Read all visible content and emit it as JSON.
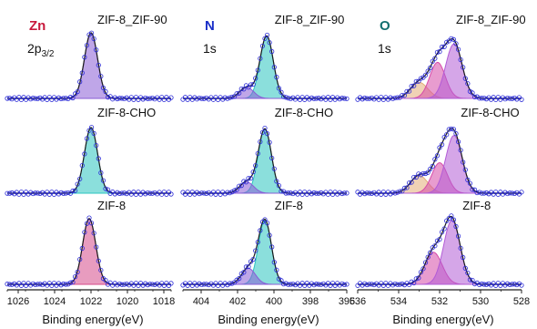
{
  "figure": {
    "colors": {
      "fit_line": "#1a1a1a",
      "data_marker": "#2b2bd6",
      "baseline": "#4a4af0"
    }
  },
  "chart_data": [
    {
      "type": "area",
      "element": "Zn",
      "element_color": "#c8193c",
      "orbital": "2p",
      "orbital_sub": "3/2",
      "xlabel": "Binding energy(eV)",
      "xlim": [
        1026.6,
        1017.6
      ],
      "x_ticks": [
        "1026",
        "1024",
        "1022",
        "1020",
        "1018"
      ],
      "x_tick_values": [
        1026,
        1024,
        1022,
        1020,
        1018
      ],
      "stacks": [
        {
          "label": "ZIF-8_ZIF-90",
          "peaks": [
            {
              "center": 1022.0,
              "height": 0.82,
              "width": 0.85,
              "color": "#8a5cd6"
            }
          ]
        },
        {
          "label": "ZIF-8-CHO",
          "peaks": [
            {
              "center": 1022.0,
              "height": 0.82,
              "width": 0.85,
              "color": "#2bc4c0"
            }
          ]
        },
        {
          "label": "ZIF-8",
          "peaks": [
            {
              "center": 1022.1,
              "height": 0.82,
              "width": 0.85,
              "color": "#d64a8a"
            }
          ]
        }
      ]
    },
    {
      "type": "area",
      "element": "N",
      "element_color": "#1a2fc8",
      "orbital": "1s",
      "orbital_sub": "",
      "xlabel": "Binding energy(eV)",
      "xlim": [
        405,
        396
      ],
      "x_ticks": [
        "404",
        "402",
        "400",
        "398",
        "396"
      ],
      "x_tick_values": [
        404,
        402,
        400,
        398,
        396
      ],
      "stacks": [
        {
          "label": "ZIF-8_ZIF-90",
          "peaks": [
            {
              "center": 400.4,
              "height": 0.78,
              "width": 0.85,
              "color": "#2bc4c0"
            },
            {
              "center": 401.5,
              "height": 0.14,
              "width": 0.9,
              "color": "#8a5cd6"
            }
          ]
        },
        {
          "label": "ZIF-8-CHO",
          "peaks": [
            {
              "center": 400.5,
              "height": 0.8,
              "width": 0.85,
              "color": "#2bc4c0"
            },
            {
              "center": 401.5,
              "height": 0.14,
              "width": 0.9,
              "color": "#8a5cd6"
            }
          ]
        },
        {
          "label": "ZIF-8",
          "peaks": [
            {
              "center": 400.5,
              "height": 0.8,
              "width": 0.85,
              "color": "#2bc4c0"
            },
            {
              "center": 401.4,
              "height": 0.2,
              "width": 0.9,
              "color": "#8a5cd6"
            }
          ]
        }
      ]
    },
    {
      "type": "area",
      "element": "O",
      "element_color": "#126e6e",
      "orbital": "1s",
      "orbital_sub": "",
      "xlabel": "Binding energy(eV)",
      "xlim": [
        536,
        528
      ],
      "x_ticks": [
        "536",
        "534",
        "532",
        "530",
        "528"
      ],
      "x_tick_values": [
        536,
        534,
        532,
        530,
        528
      ],
      "stacks": [
        {
          "label": "ZIF-8_ZIF-90",
          "peaks": [
            {
              "center": 533.0,
              "height": 0.2,
              "width": 1.0,
              "color": "#e3ad78"
            },
            {
              "center": 532.1,
              "height": 0.45,
              "width": 0.9,
              "color": "#d64aa8"
            },
            {
              "center": 531.3,
              "height": 0.68,
              "width": 0.95,
              "color": "#b25cd6"
            }
          ]
        },
        {
          "label": "ZIF-8-CHO",
          "peaks": [
            {
              "center": 533.0,
              "height": 0.22,
              "width": 1.0,
              "color": "#e3ad78"
            },
            {
              "center": 532.0,
              "height": 0.38,
              "width": 0.9,
              "color": "#d64aa8"
            },
            {
              "center": 531.3,
              "height": 0.72,
              "width": 0.95,
              "color": "#b25cd6"
            }
          ]
        },
        {
          "label": "ZIF-8",
          "peaks": [
            {
              "center": 532.3,
              "height": 0.4,
              "width": 1.0,
              "color": "#d64aa8"
            },
            {
              "center": 531.4,
              "height": 0.8,
              "width": 0.95,
              "color": "#b25cd6"
            }
          ]
        }
      ]
    }
  ]
}
